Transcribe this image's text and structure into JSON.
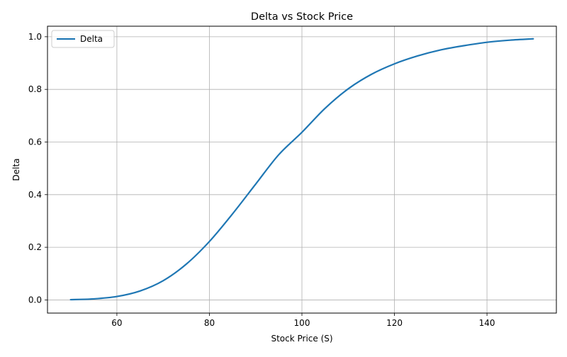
{
  "chart_data": {
    "type": "line",
    "title": "Delta vs Stock Price",
    "xlabel": "Stock Price (S)",
    "ylabel": "Delta",
    "xlim": [
      45,
      155
    ],
    "ylim": [
      -0.05,
      1.04
    ],
    "xticks": [
      60,
      80,
      100,
      120,
      140
    ],
    "yticks": [
      0.0,
      0.2,
      0.4,
      0.6,
      0.8,
      1.0
    ],
    "xtick_labels": [
      "60",
      "80",
      "100",
      "120",
      "140"
    ],
    "ytick_labels": [
      "0.0",
      "0.2",
      "0.4",
      "0.6",
      "0.8",
      "1.0"
    ],
    "grid": true,
    "legend_position": "top-left",
    "series": [
      {
        "name": "Delta",
        "color": "#1f77b4",
        "x": [
          50,
          55,
          60,
          65,
          70,
          75,
          80,
          85,
          90,
          95,
          100,
          105,
          110,
          115,
          120,
          125,
          130,
          135,
          140,
          145,
          150
        ],
        "y": [
          0.001,
          0.004,
          0.013,
          0.034,
          0.073,
          0.136,
          0.222,
          0.327,
          0.44,
          0.552,
          0.637,
          0.728,
          0.802,
          0.857,
          0.897,
          0.927,
          0.95,
          0.966,
          0.979,
          0.987,
          0.992
        ]
      }
    ]
  }
}
